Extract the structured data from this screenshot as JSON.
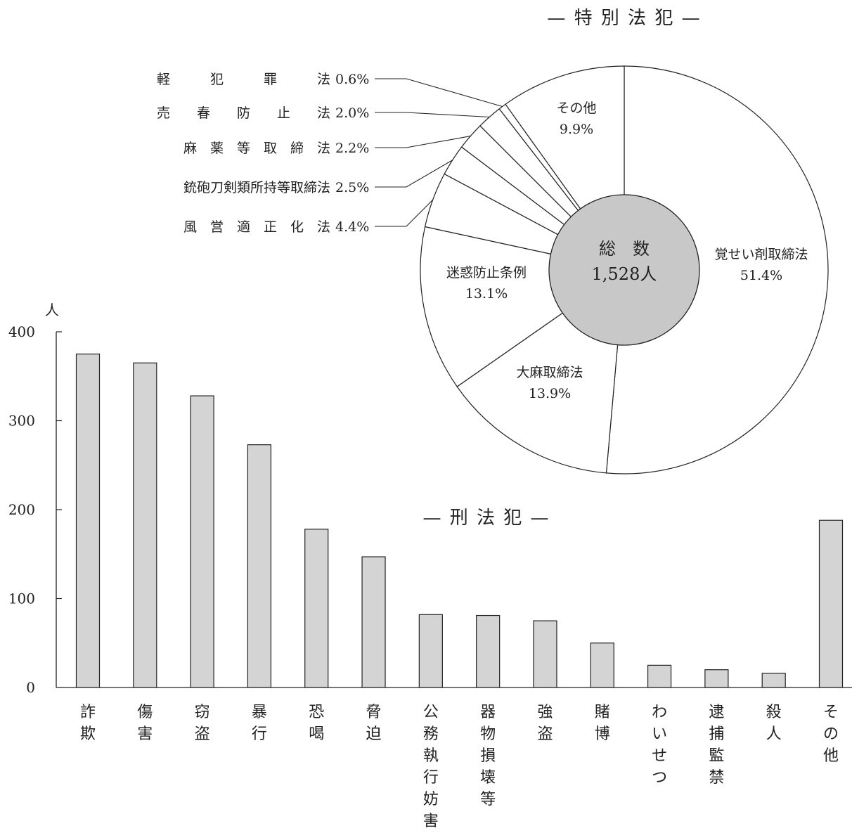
{
  "chart_data": [
    {
      "type": "pie",
      "title": "— 特 別 法 犯 —",
      "center_label": "総　数",
      "center_value": "1,528人",
      "slices": [
        {
          "label": "覚せい剤取締法",
          "value": 51.4,
          "value_label": "51.4%"
        },
        {
          "label": "大麻取締法",
          "value": 13.9,
          "value_label": "13.9%"
        },
        {
          "label": "迷惑防止条例",
          "value": 13.1,
          "value_label": "13.1%"
        },
        {
          "label": "風　営　適　正　化　法",
          "value": 4.4,
          "value_label": "4.4%"
        },
        {
          "label": "銃砲刀剣類所持等取締法",
          "value": 2.5,
          "value_label": "2.5%"
        },
        {
          "label": "麻　薬　等　取　締　法",
          "value": 2.2,
          "value_label": "2.2%"
        },
        {
          "label": "売　　春　　防　　止　　法",
          "value": 2.0,
          "value_label": "2.0%"
        },
        {
          "label": "軽　　　犯　　　罪　　　法",
          "value": 0.6,
          "value_label": "0.6%"
        },
        {
          "label": "その他",
          "value": 9.9,
          "value_label": "9.9%"
        }
      ],
      "colors": {
        "slices": "#ffffff",
        "center": "#c8c8c8",
        "stroke": "#222222"
      }
    },
    {
      "type": "bar",
      "title": "— 刑 法 犯 —",
      "ylabel": "人",
      "ylim": [
        0,
        400
      ],
      "yticks": [
        "0",
        "100",
        "200",
        "300",
        "400"
      ],
      "categories": [
        "詐欺",
        "傷害",
        "窃盗",
        "暴行",
        "恐喝",
        "脅迫",
        "公務執行妨害",
        "器物損壊等",
        "強盗",
        "賭博",
        "わいせつ",
        "逮捕監禁",
        "殺人",
        "その他"
      ],
      "values": [
        375,
        365,
        328,
        273,
        178,
        147,
        82,
        81,
        75,
        50,
        25,
        20,
        16,
        188
      ],
      "colors": {
        "bar": "#d4d4d4",
        "stroke": "#222222"
      }
    }
  ]
}
